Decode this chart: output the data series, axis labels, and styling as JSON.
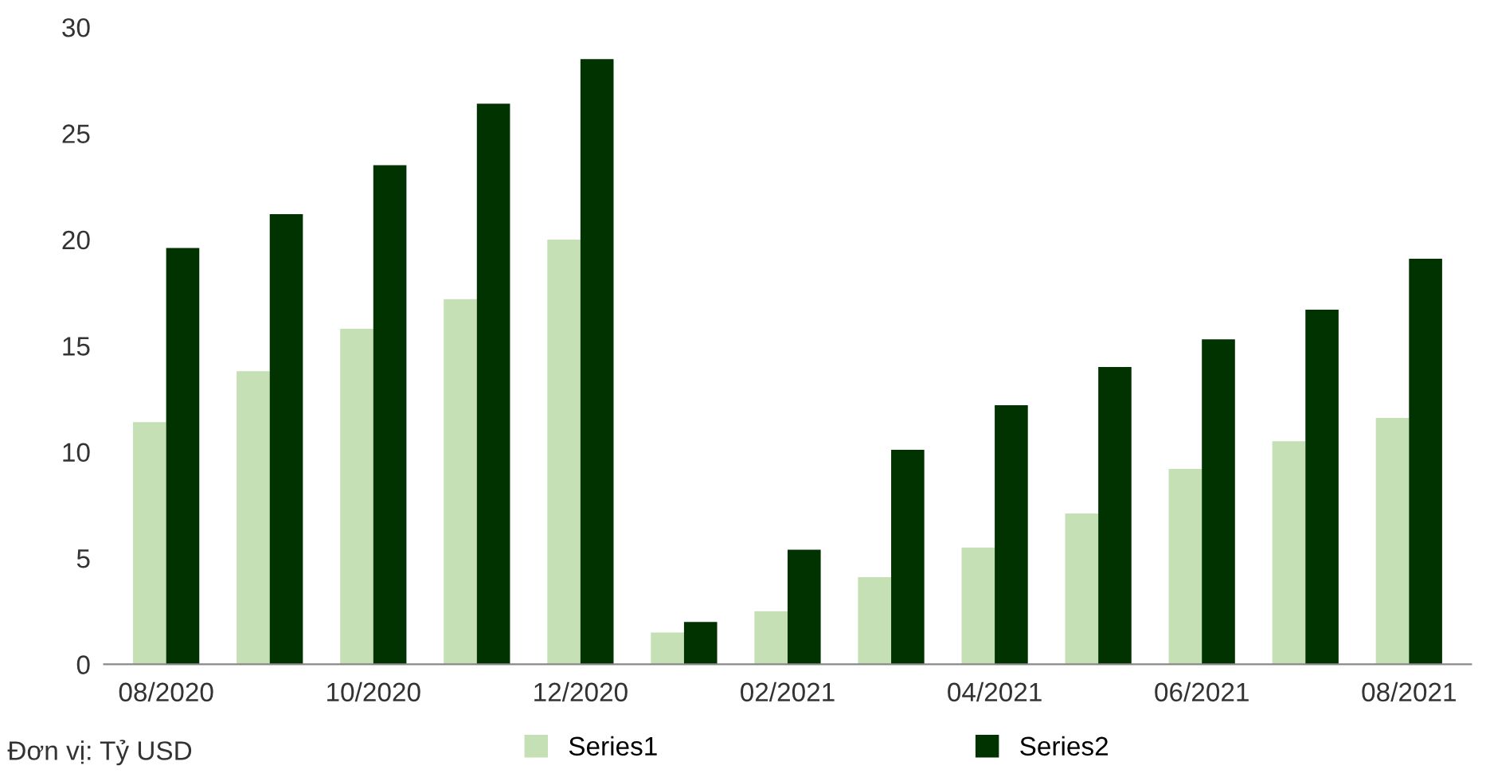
{
  "chart_data": {
    "type": "bar",
    "categories": [
      "08/2020",
      null,
      "10/2020",
      null,
      "12/2020",
      null,
      "02/2021",
      null,
      "04/2021",
      null,
      "06/2021",
      null,
      "08/2021"
    ],
    "series": [
      {
        "name": "Series1",
        "color": "#c5e0b4",
        "values": [
          11.4,
          13.8,
          15.8,
          17.2,
          20.0,
          1.5,
          2.5,
          4.1,
          5.5,
          7.1,
          9.2,
          10.5,
          11.6
        ]
      },
      {
        "name": "Series2",
        "color": "#003300",
        "values": [
          19.6,
          21.2,
          23.5,
          26.4,
          28.5,
          2.0,
          5.4,
          10.1,
          12.2,
          14.0,
          15.3,
          16.7,
          19.1
        ]
      }
    ],
    "ylim": [
      0,
      30
    ],
    "yticks": [
      0,
      5,
      10,
      15,
      20,
      25,
      30
    ],
    "grid": false,
    "legend": "bottom",
    "annotations": [
      "Đơn vị: Tỷ USD"
    ]
  }
}
